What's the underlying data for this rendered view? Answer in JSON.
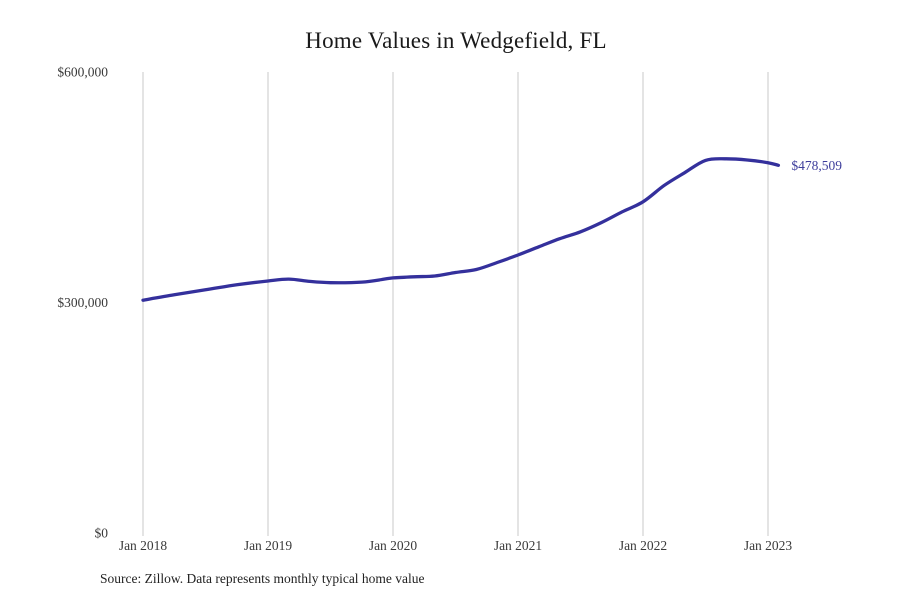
{
  "chart": {
    "title": "Home Values in Wedgefield, FL",
    "source": "Source: Zillow. Data represents monthly typical home value",
    "colors": {
      "line": "#34309C",
      "value_label": "#3E3E9C",
      "grid": "#C9C9C9",
      "tick_text": "#3A3A3A",
      "title_text": "#1A1A1A",
      "source_text": "#222222"
    }
  },
  "chart_data": {
    "type": "line",
    "title": "Home Values in Wedgefield, FL",
    "xlabel": "",
    "ylabel": "",
    "ylim": [
      0,
      600000
    ],
    "grid": "vertical-only",
    "legend": "none",
    "x_ticks": [
      {
        "month": 0,
        "label": "Jan 2018"
      },
      {
        "month": 12,
        "label": "Jan 2019"
      },
      {
        "month": 24,
        "label": "Jan 2020"
      },
      {
        "month": 36,
        "label": "Jan 2021"
      },
      {
        "month": 48,
        "label": "Jan 2022"
      },
      {
        "month": 60,
        "label": "Jan 2023"
      }
    ],
    "y_ticks": [
      {
        "value": 0,
        "label": "$0"
      },
      {
        "value": 300000,
        "label": "$300,000"
      },
      {
        "value": 600000,
        "label": "$600,000"
      }
    ],
    "last_value_label": "$478,509",
    "series": [
      {
        "name": "Monthly typical home value",
        "months": [
          0,
          3,
          6,
          9,
          12,
          14,
          16,
          18,
          21,
          23,
          24,
          26,
          28,
          30,
          32,
          34,
          36,
          38,
          40,
          42,
          44,
          46,
          48,
          50,
          52,
          54,
          56,
          58,
          60,
          61
        ],
        "values": [
          303000,
          310000,
          316500,
          323000,
          328000,
          330500,
          327500,
          325800,
          326500,
          330000,
          332000,
          333500,
          334500,
          339000,
          343000,
          352000,
          361800,
          372500,
          383000,
          392000,
          404000,
          418000,
          431000,
          452000,
          469000,
          485000,
          487000,
          485500,
          482000,
          478509
        ]
      }
    ]
  }
}
